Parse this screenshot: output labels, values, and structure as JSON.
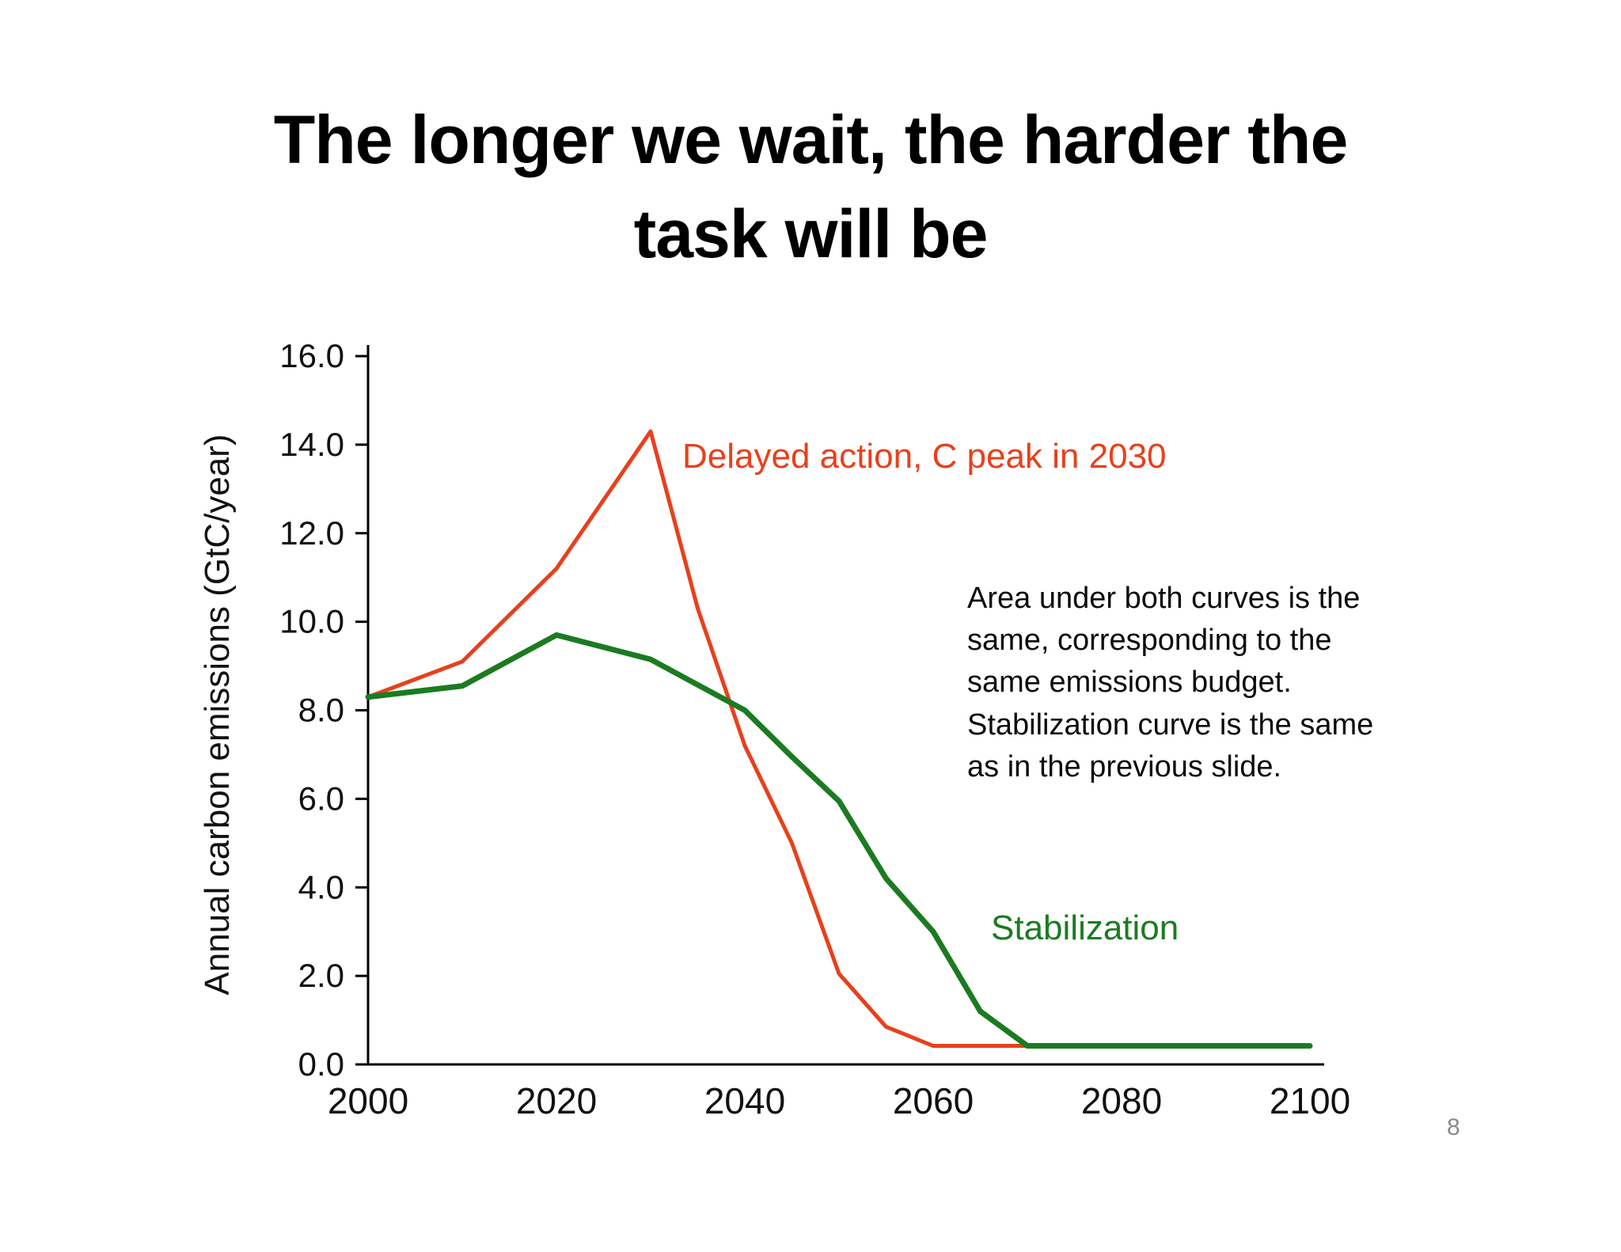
{
  "slide": {
    "title": "The longer we wait, the harder the\ntask will be",
    "page_number": "8"
  },
  "annotation": {
    "text": "Area under both curves is the\nsame, corresponding to the\nsame emissions budget.\nStabilization curve is the same\nas in the previous slide."
  },
  "chart_data": {
    "type": "line",
    "title": "",
    "xlabel": "",
    "ylabel": "Annual carbon emissions  (GtC/year)",
    "xlim": [
      2000,
      2100
    ],
    "ylim": [
      0,
      16
    ],
    "grid": false,
    "legend_position": "inline-annotations",
    "xticks": [
      {
        "value": 2000,
        "label": "2000"
      },
      {
        "value": 2020,
        "label": "2020"
      },
      {
        "value": 2040,
        "label": "2040"
      },
      {
        "value": 2060,
        "label": "2060"
      },
      {
        "value": 2080,
        "label": "2080"
      },
      {
        "value": 2100,
        "label": "2100"
      }
    ],
    "yticks": [
      {
        "value": 0,
        "label": "0.0"
      },
      {
        "value": 2,
        "label": "2.0"
      },
      {
        "value": 4,
        "label": "4.0"
      },
      {
        "value": 6,
        "label": "6.0"
      },
      {
        "value": 8,
        "label": "8.0"
      },
      {
        "value": 10,
        "label": "10.0"
      },
      {
        "value": 12,
        "label": "12.0"
      },
      {
        "value": 14,
        "label": "14.0"
      },
      {
        "value": 16,
        "label": "16.0"
      }
    ],
    "series": [
      {
        "name": "Delayed action, C peak in 2030",
        "color": "#e8401c",
        "line_width": 5,
        "x": [
          2000,
          2010,
          2020,
          2030,
          2035,
          2040,
          2045,
          2050,
          2055,
          2060,
          2070,
          2100
        ],
        "y": [
          8.3,
          9.1,
          11.2,
          14.3,
          10.3,
          7.2,
          5.0,
          2.05,
          0.85,
          0.42,
          0.42,
          0.42
        ]
      },
      {
        "name": "Stabilization",
        "color": "#1b7b21",
        "line_width": 7,
        "x": [
          2000,
          2010,
          2020,
          2030,
          2040,
          2045,
          2050,
          2055,
          2060,
          2065,
          2070,
          2100
        ],
        "y": [
          8.3,
          8.55,
          9.7,
          9.15,
          8.0,
          6.95,
          5.95,
          4.2,
          3.0,
          1.2,
          0.42,
          0.42
        ]
      }
    ]
  }
}
